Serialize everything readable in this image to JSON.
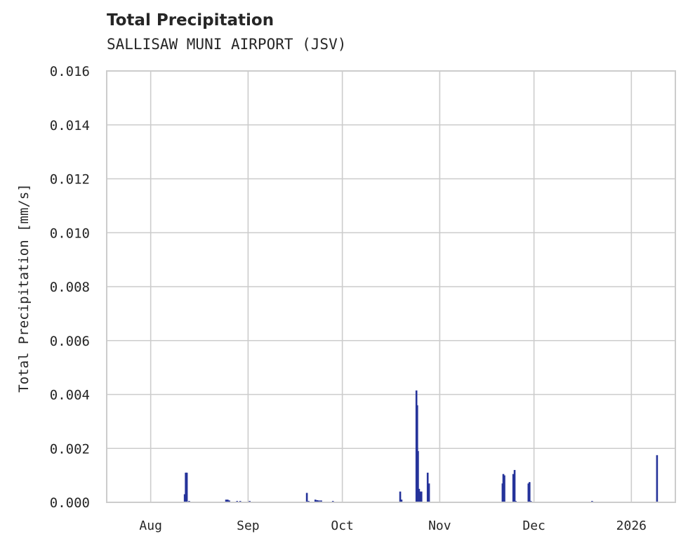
{
  "chart_data": {
    "type": "bar",
    "title": "Total Precipitation",
    "subtitle": "SALLISAW MUNI AIRPORT (JSV)",
    "xlabel": "",
    "ylabel": "Total Precipitation [mm/s]",
    "ylim": [
      0,
      0.016
    ],
    "xlim": [
      "2025-07-18",
      "2026-01-15"
    ],
    "grid": true,
    "color": "#25339a",
    "yticks": [
      "0.000",
      "0.002",
      "0.004",
      "0.006",
      "0.008",
      "0.010",
      "0.012",
      "0.014",
      "0.016"
    ],
    "xticks": [
      {
        "date": "2025-08-01",
        "label": "Aug"
      },
      {
        "date": "2025-09-01",
        "label": "Sep"
      },
      {
        "date": "2025-10-01",
        "label": "Oct"
      },
      {
        "date": "2025-11-01",
        "label": "Nov"
      },
      {
        "date": "2025-12-01",
        "label": "Dec"
      },
      {
        "date": "2026-01-01",
        "label": "2026"
      }
    ],
    "points": [
      {
        "t": "2025-08-11T20:00",
        "v": 0.0003
      },
      {
        "t": "2025-08-12T04:00",
        "v": 0.0011
      },
      {
        "t": "2025-08-12T12:00",
        "v": 0.0011
      },
      {
        "t": "2025-08-13T06:00",
        "v": 5e-05
      },
      {
        "t": "2025-08-25T00:00",
        "v": 0.0001
      },
      {
        "t": "2025-08-25T12:00",
        "v": 0.0001
      },
      {
        "t": "2025-08-26T00:00",
        "v": 7e-05
      },
      {
        "t": "2025-08-28T12:00",
        "v": 5e-05
      },
      {
        "t": "2025-08-29T12:00",
        "v": 5e-05
      },
      {
        "t": "2025-09-01T12:00",
        "v": 5e-05
      },
      {
        "t": "2025-09-19T17:00",
        "v": 0.00035
      },
      {
        "t": "2025-09-20T06:00",
        "v": 5e-05
      },
      {
        "t": "2025-09-22T10:00",
        "v": 0.0001
      },
      {
        "t": "2025-09-23T00:00",
        "v": 8e-05
      },
      {
        "t": "2025-09-23T14:00",
        "v": 7e-05
      },
      {
        "t": "2025-09-24T06:00",
        "v": 7e-05
      },
      {
        "t": "2025-09-28T00:00",
        "v": 5e-05
      },
      {
        "t": "2025-10-19T10:00",
        "v": 0.0004
      },
      {
        "t": "2025-10-19T20:00",
        "v": 0.0001
      },
      {
        "t": "2025-10-24T14:00",
        "v": 0.00415
      },
      {
        "t": "2025-10-24T20:00",
        "v": 0.0036
      },
      {
        "t": "2025-10-25T02:00",
        "v": 0.0019
      },
      {
        "t": "2025-10-25T10:00",
        "v": 0.0005
      },
      {
        "t": "2025-10-25T20:00",
        "v": 0.0004
      },
      {
        "t": "2025-10-26T04:00",
        "v": 0.0004
      },
      {
        "t": "2025-10-28T04:00",
        "v": 0.0011
      },
      {
        "t": "2025-10-28T14:00",
        "v": 0.0007
      },
      {
        "t": "2025-11-21T00:00",
        "v": 0.0007
      },
      {
        "t": "2025-11-21T06:00",
        "v": 0.00105
      },
      {
        "t": "2025-11-21T14:00",
        "v": 0.001
      },
      {
        "t": "2025-11-24T10:00",
        "v": 0.00105
      },
      {
        "t": "2025-11-24T20:00",
        "v": 0.0012
      },
      {
        "t": "2025-11-25T04:00",
        "v": 5e-05
      },
      {
        "t": "2025-11-29T06:00",
        "v": 0.0007
      },
      {
        "t": "2025-11-29T14:00",
        "v": 0.00075
      },
      {
        "t": "2025-11-30T00:00",
        "v": 5e-05
      },
      {
        "t": "2025-12-19T12:00",
        "v": 5e-05
      },
      {
        "t": "2026-01-09T04:00",
        "v": 0.00175
      }
    ]
  }
}
